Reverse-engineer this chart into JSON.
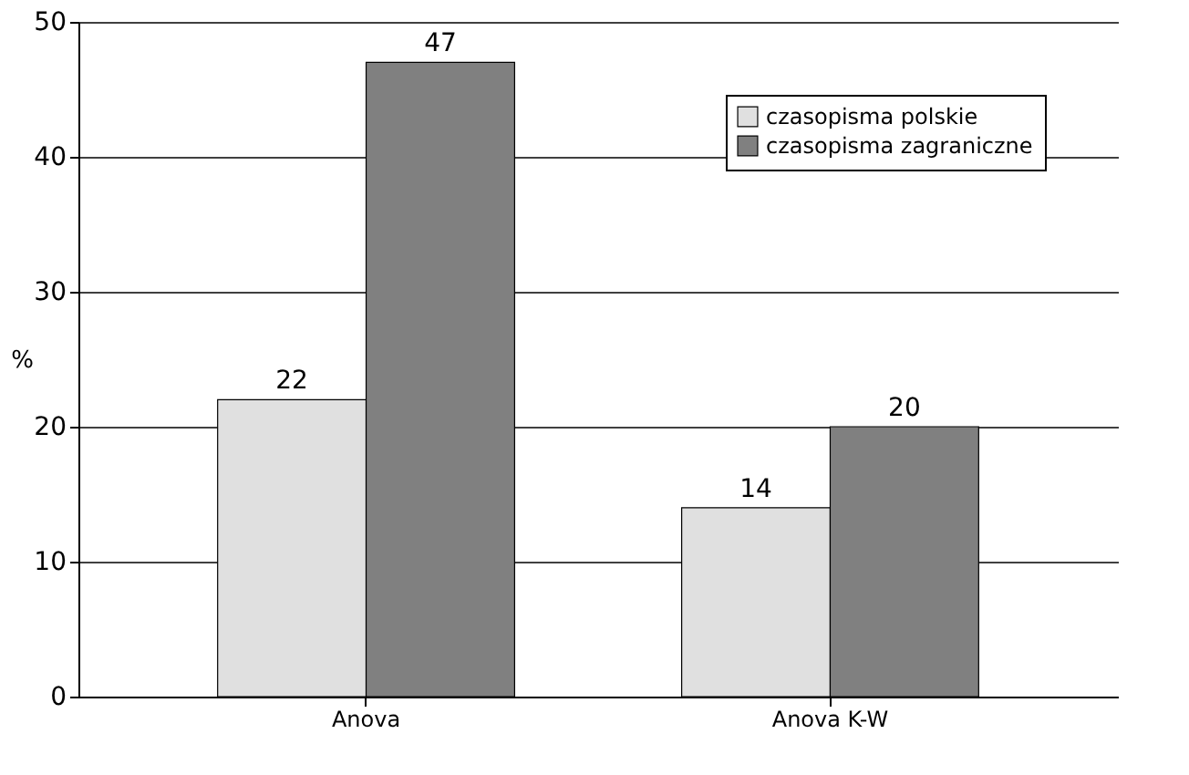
{
  "chart_data": {
    "type": "bar",
    "ylabel": "%",
    "categories": [
      "Anova",
      "Anova K-W"
    ],
    "series": [
      {
        "name": "czasopisma polskie",
        "color": "#e0e0e0",
        "values": [
          22,
          14
        ]
      },
      {
        "name": "czasopisma zagraniczne",
        "color": "#808080",
        "values": [
          47,
          20
        ]
      }
    ],
    "ylim": [
      0,
      50
    ],
    "yticks": [
      0,
      10,
      20,
      30,
      40,
      50
    ],
    "grid": "y",
    "legend": "top right",
    "data_labels": true
  }
}
